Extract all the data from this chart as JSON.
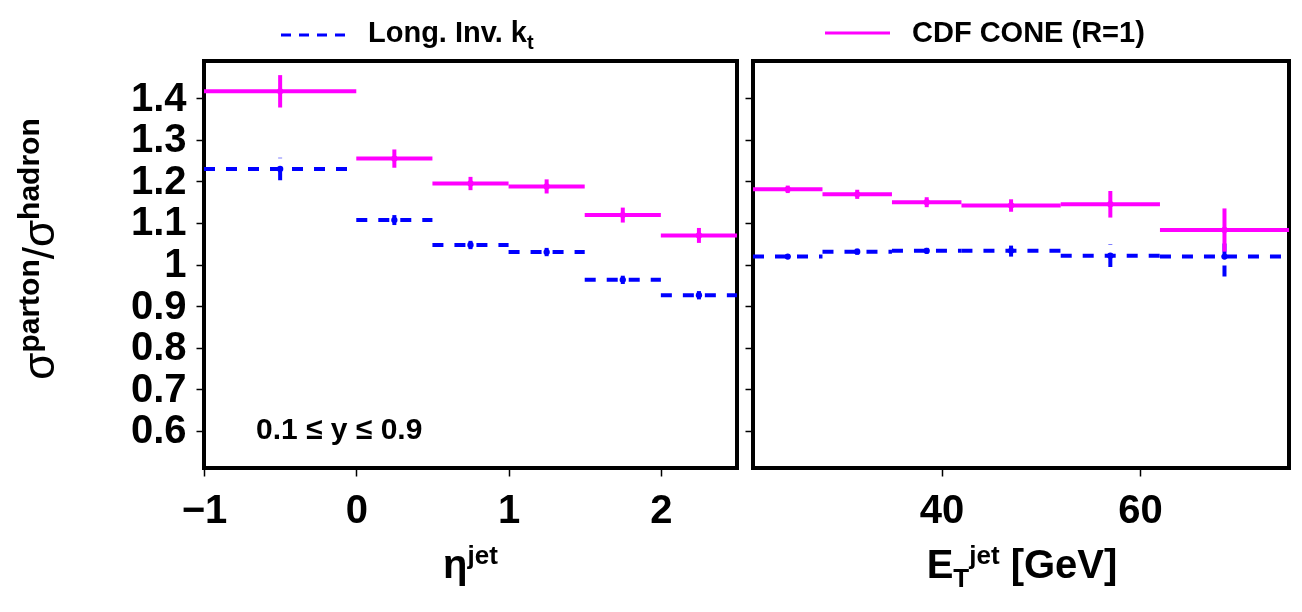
{
  "chart_data": [
    {
      "type": "scatter",
      "xlabel": "η$^{jet}$",
      "ylabel": "σ$^{parton}$/σ$^{hadron}$",
      "x": [
        -0.5,
        0.25,
        0.75,
        1.25,
        1.75,
        2.25
      ],
      "xlim": [
        -1,
        2.5
      ],
      "xticks": [
        -1,
        0,
        1,
        2
      ],
      "ylim": [
        0.51,
        1.49
      ],
      "yticks": [
        0.6,
        0.7,
        0.8,
        0.9,
        1,
        1.1,
        1.2,
        1.3,
        1.4
      ],
      "legend": "top",
      "annotations": [
        "0.1 ≤ y ≤ 0.9"
      ],
      "series": [
        {
          "name": "Long. Inv. k$_{t}$",
          "color": "#0000ff",
          "line_style": "dashed",
          "values": [
            1.23,
            1.107,
            1.047,
            1.03,
            0.963,
            0.926
          ],
          "errors": [
            0.027,
            0.012,
            0.01,
            0.01,
            0.01,
            0.01
          ],
          "xerrors": [
            0.5,
            0.25,
            0.25,
            0.25,
            0.25,
            0.25
          ]
        },
        {
          "name": "CDF CONE (R=1)",
          "color": "#ff00ff",
          "line_style": "solid",
          "values": [
            1.417,
            1.255,
            1.195,
            1.188,
            1.119,
            1.07
          ],
          "errors": [
            0.039,
            0.022,
            0.016,
            0.017,
            0.018,
            0.018
          ],
          "xerrors": [
            0.5,
            0.25,
            0.25,
            0.25,
            0.25,
            0.25
          ]
        }
      ]
    },
    {
      "type": "scatter",
      "xlabel": "E$_{T}$$^{jet}$ [GeV]",
      "x": [
        24.5,
        31.5,
        38.5,
        47,
        57,
        68.5
      ],
      "xlim": [
        21,
        75
      ],
      "xticks": [
        40,
        60
      ],
      "ylim": [
        0.51,
        1.49
      ],
      "yticks": [
        0.6,
        0.7,
        0.8,
        0.9,
        1,
        1.1,
        1.2,
        1.3,
        1.4
      ],
      "tick_labels": "x",
      "series": [
        {
          "color": "#0000ff",
          "line_style": "dashed",
          "values": [
            1.019,
            1.031,
            1.033,
            1.033,
            1.021,
            1.019
          ],
          "errors": [
            0.005,
            0.007,
            0.007,
            0.014,
            0.027,
            0.048
          ],
          "xerrors": [
            3.5,
            3.5,
            3.5,
            5,
            5,
            6.5
          ]
        },
        {
          "color": "#ff00ff",
          "line_style": "solid",
          "values": [
            1.181,
            1.169,
            1.15,
            1.142,
            1.145,
            1.083
          ],
          "errors": [
            0.009,
            0.011,
            0.012,
            0.015,
            0.032,
            0.052
          ],
          "xerrors": [
            3.5,
            3.5,
            3.5,
            5,
            5,
            6.5
          ]
        }
      ]
    }
  ]
}
